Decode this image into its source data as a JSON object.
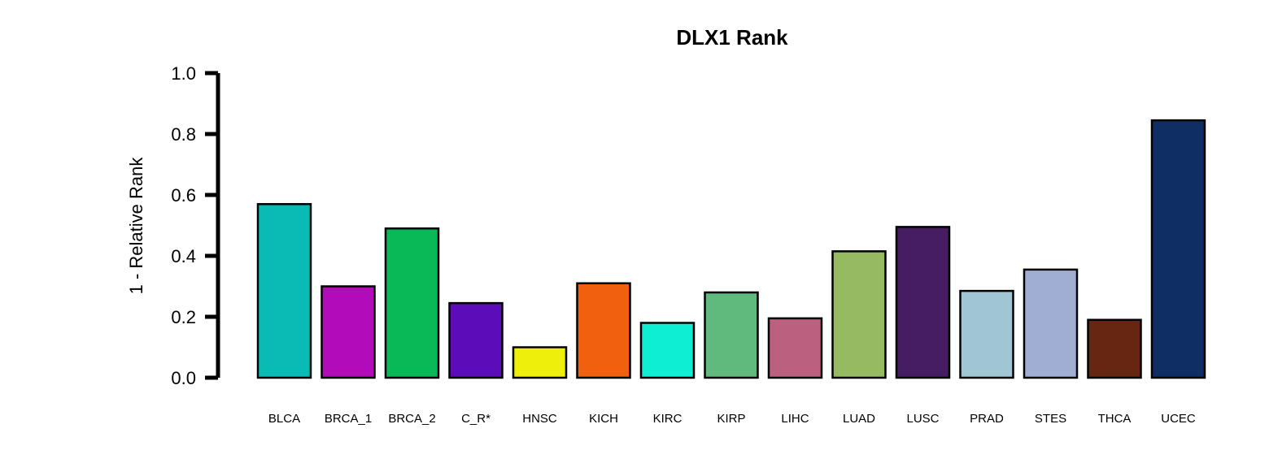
{
  "chart_data": {
    "type": "bar",
    "title": "DLX1 Rank",
    "ylabel": "1 - Relative Rank",
    "xlabel": "",
    "ylim": [
      0,
      1
    ],
    "yticks": [
      "0.0",
      "0.2",
      "0.4",
      "0.6",
      "0.8",
      "1.0"
    ],
    "grid": false,
    "categories": [
      "BLCA",
      "BRCA_1",
      "BRCA_2",
      "C_R*",
      "HNSC",
      "KICH",
      "KIRC",
      "KIRP",
      "LIHC",
      "LUAD",
      "LUSC",
      "PRAD",
      "STES",
      "THCA",
      "UCEC"
    ],
    "values": [
      0.57,
      0.3,
      0.49,
      0.245,
      0.1,
      0.31,
      0.18,
      0.28,
      0.195,
      0.415,
      0.495,
      0.285,
      0.355,
      0.19,
      0.845
    ],
    "colors": [
      "#0ABAB5",
      "#B20CB9",
      "#09B857",
      "#5C0CB9",
      "#EEF00C",
      "#F0600F",
      "#0EEED3",
      "#60BA7E",
      "#BC6080",
      "#96BA62",
      "#461C62",
      "#A0C6D3",
      "#A0AED3",
      "#672612",
      "#0E2E64"
    ]
  }
}
